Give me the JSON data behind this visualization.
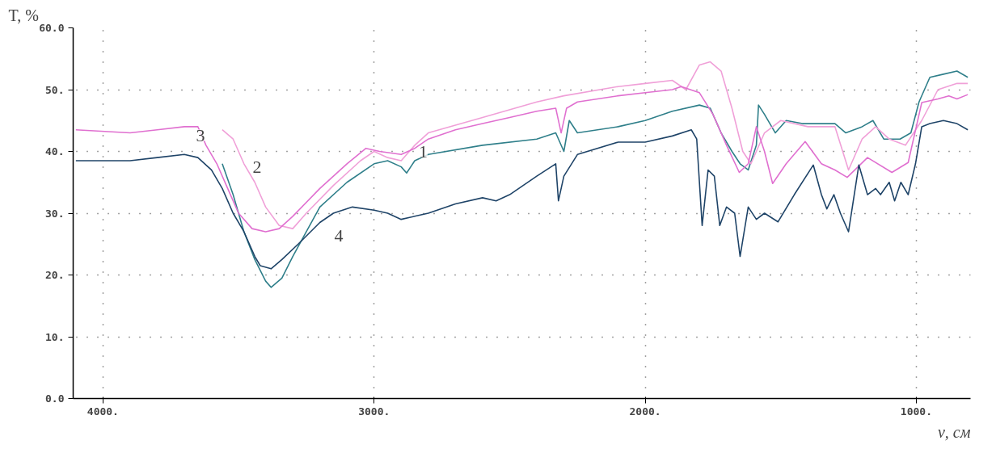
{
  "chart_data": {
    "type": "line",
    "xlabel": "ν, см",
    "ylabel": "T, %",
    "xlim": [
      4110,
      800
    ],
    "ylim": [
      0,
      60
    ],
    "xticks": [
      {
        "value": 4000,
        "label": "4000."
      },
      {
        "value": 3000,
        "label": "3000."
      },
      {
        "value": 2000,
        "label": "2000."
      },
      {
        "value": 1000,
        "label": "1000."
      }
    ],
    "yticks": [
      {
        "value": 0,
        "label": "0.0"
      },
      {
        "value": 10,
        "label": "10."
      },
      {
        "value": 20,
        "label": "20."
      },
      {
        "value": 30,
        "label": "30."
      },
      {
        "value": 40,
        "label": "40."
      },
      {
        "value": 50,
        "label": "50."
      },
      {
        "value": 60,
        "label": "60.0"
      }
    ],
    "grid": true,
    "marker": "none",
    "line_style": "solid",
    "series": [
      {
        "color": "#2f7f8a",
        "x": [
          3560,
          3520,
          3480,
          3440,
          3400,
          3380,
          3340,
          3300,
          3250,
          3200,
          3100,
          3000,
          2950,
          2900,
          2880,
          2850,
          2800,
          2600,
          2400,
          2330,
          2300,
          2280,
          2250,
          2100,
          2000,
          1900,
          1800,
          1760,
          1720,
          1680,
          1650,
          1620,
          1590,
          1582,
          1560,
          1520,
          1480,
          1420,
          1300,
          1260,
          1200,
          1160,
          1120,
          1060,
          1020,
          990,
          950,
          900,
          850,
          810
        ],
        "values": [
          38,
          33,
          27,
          22.5,
          19,
          18,
          19.5,
          23,
          27,
          31,
          35,
          38,
          38.5,
          37.5,
          36.5,
          38.5,
          39.5,
          41,
          42,
          43,
          40,
          45,
          43,
          44,
          45,
          46.5,
          47.5,
          47,
          43,
          40,
          38,
          37,
          41,
          47.5,
          46,
          43,
          45,
          44.5,
          44.5,
          43,
          44,
          45,
          42,
          42,
          43,
          48,
          52,
          52.5,
          53,
          52
        ]
      },
      {
        "color": "#f0a0d8",
        "x": [
          3560,
          3520,
          3480,
          3440,
          3400,
          3350,
          3300,
          3250,
          3150,
          3050,
          3000,
          2950,
          2900,
          2850,
          2800,
          2600,
          2400,
          2300,
          2100,
          2000,
          1900,
          1850,
          1800,
          1760,
          1720,
          1680,
          1640,
          1610,
          1560,
          1500,
          1400,
          1300,
          1250,
          1200,
          1150,
          1100,
          1040,
          980,
          920,
          850,
          810
        ],
        "values": [
          43.5,
          42,
          38,
          35,
          31,
          28,
          27.5,
          30,
          34.5,
          38.5,
          40,
          39,
          38.5,
          41,
          43,
          45.5,
          48,
          49,
          50.5,
          51,
          51.5,
          50,
          54,
          54.5,
          53,
          47,
          40,
          38,
          43,
          45,
          44,
          44,
          37,
          42,
          44,
          42,
          41,
          45,
          50,
          51,
          51
        ]
      },
      {
        "color": "#e070d0",
        "x": [
          4100,
          3900,
          3800,
          3700,
          3650,
          3620,
          3580,
          3540,
          3500,
          3450,
          3400,
          3350,
          3300,
          3200,
          3100,
          3030,
          2980,
          2900,
          2850,
          2800,
          2700,
          2600,
          2500,
          2400,
          2330,
          2310,
          2290,
          2250,
          2100,
          2000,
          1900,
          1867,
          1800,
          1750,
          1700,
          1653,
          1620,
          1590,
          1560,
          1530,
          1480,
          1410,
          1350,
          1300,
          1255,
          1180,
          1090,
          1030,
          980,
          920,
          880,
          850,
          810
        ],
        "values": [
          43.5,
          43,
          43.5,
          44,
          44,
          41,
          38,
          34,
          30,
          27.5,
          27,
          27.5,
          29.5,
          34,
          38,
          40.5,
          40,
          39.5,
          40.5,
          42,
          43.5,
          44.5,
          45.5,
          46.5,
          47,
          43,
          47,
          48,
          49,
          49.5,
          50,
          50.5,
          49.5,
          46,
          41,
          36.6,
          38,
          44,
          40,
          34.8,
          38,
          41.6,
          38,
          37,
          35.8,
          39,
          36.6,
          38.2,
          47.9,
          48.5,
          49,
          48.5,
          49.2
        ]
      },
      {
        "color": "#1f4468",
        "x": [
          4100,
          3900,
          3800,
          3700,
          3650,
          3600,
          3560,
          3520,
          3480,
          3440,
          3420,
          3380,
          3340,
          3280,
          3200,
          3150,
          3080,
          3000,
          2950,
          2900,
          2850,
          2800,
          2700,
          2600,
          2550,
          2500,
          2400,
          2330,
          2320,
          2300,
          2250,
          2100,
          2000,
          1900,
          1830,
          1810,
          1790,
          1768,
          1745,
          1725,
          1700,
          1670,
          1650,
          1620,
          1590,
          1560,
          1510,
          1450,
          1380,
          1350,
          1330,
          1304,
          1280,
          1250,
          1212,
          1180,
          1150,
          1132,
          1100,
          1080,
          1057,
          1030,
          1003,
          980,
          950,
          900,
          850,
          810
        ],
        "values": [
          38.5,
          38.5,
          39,
          39.5,
          39,
          37,
          34,
          30,
          27,
          23,
          21.5,
          21,
          22.5,
          25,
          28.5,
          30,
          31,
          30.5,
          30,
          29,
          29.5,
          30,
          31.5,
          32.5,
          32,
          33,
          36,
          38,
          32,
          36,
          39.5,
          41.5,
          41.5,
          42.5,
          43.5,
          42,
          28,
          37,
          36,
          28,
          31,
          30,
          23,
          31,
          29,
          30,
          28.6,
          33,
          37.8,
          33,
          30.7,
          33,
          30,
          27,
          37.8,
          33,
          34,
          33,
          35,
          32,
          35,
          33,
          38,
          44,
          44.5,
          45,
          44.5,
          43.5
        ]
      }
    ],
    "annotations": [
      "1",
      "2",
      "3",
      "4"
    ]
  }
}
